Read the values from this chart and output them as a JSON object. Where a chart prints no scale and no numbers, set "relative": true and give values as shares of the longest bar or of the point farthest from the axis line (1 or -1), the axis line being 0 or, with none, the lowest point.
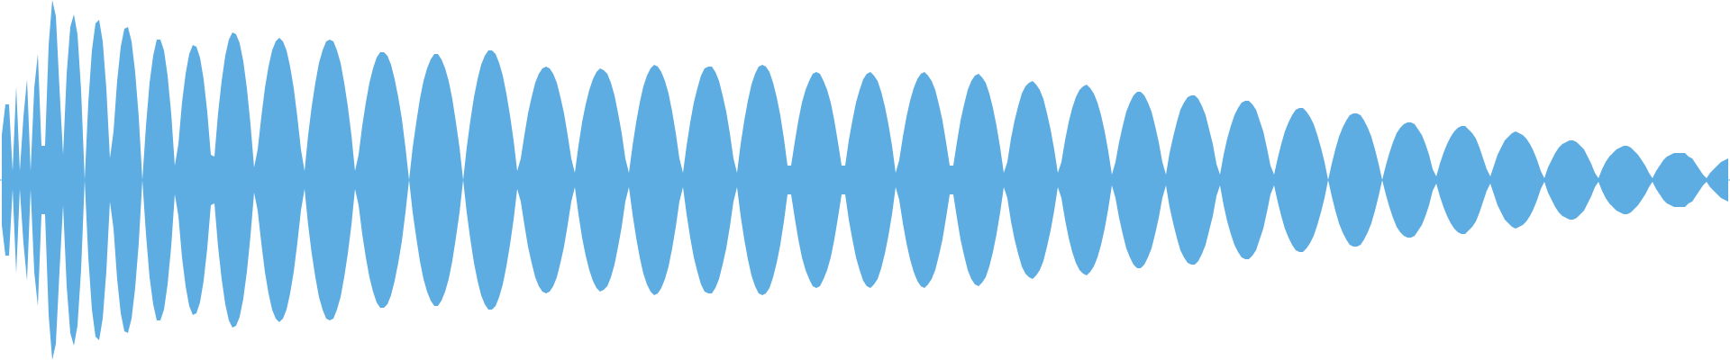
{
  "chart_data": {
    "type": "area",
    "relative": true,
    "ref_lines": [
      {
        "axis": "y",
        "value": 0,
        "color": "#5dade2"
      }
    ],
    "categories": [
      null,
      null,
      null,
      null,
      null,
      null,
      null,
      null,
      null,
      null,
      null,
      null,
      null,
      null,
      null,
      null,
      null,
      null,
      null,
      null,
      null,
      null,
      null,
      null,
      null,
      null,
      null,
      null,
      null,
      null,
      null,
      null,
      null,
      null,
      null,
      null,
      null,
      null,
      null,
      null,
      null,
      null,
      null,
      null,
      null,
      null,
      null,
      null,
      null,
      null,
      null,
      null,
      null,
      null,
      null,
      null,
      null,
      null,
      null,
      null,
      null,
      null,
      null,
      null,
      null,
      null,
      null,
      null,
      null,
      null,
      null,
      null,
      null,
      null,
      null,
      null,
      null,
      null,
      null,
      null,
      null,
      null,
      null,
      null,
      null,
      null,
      null,
      null,
      null,
      null,
      null,
      null,
      null,
      null,
      null,
      null,
      null,
      null,
      null,
      null,
      null,
      null,
      null,
      null,
      null,
      null,
      null,
      null,
      null,
      null,
      null,
      null,
      null,
      null,
      null,
      null,
      null,
      null,
      null,
      null,
      null,
      null,
      null,
      null,
      null,
      null,
      null,
      null,
      null,
      null,
      null,
      null,
      null,
      null,
      null,
      null,
      null,
      null,
      null,
      null,
      null,
      null,
      null,
      null,
      null,
      null,
      null,
      null,
      null,
      null,
      null,
      null,
      null,
      null,
      null,
      null,
      null,
      null,
      null,
      null,
      null,
      null,
      null,
      null,
      null,
      null,
      null,
      null,
      null,
      null,
      null,
      null,
      null,
      null,
      null,
      null,
      null,
      null,
      null,
      null,
      null,
      null,
      null,
      null,
      null,
      null,
      null,
      null,
      null,
      null,
      null,
      null,
      null,
      null,
      null,
      null,
      null,
      null,
      null,
      null,
      null,
      null,
      null,
      null,
      null,
      null,
      null,
      null,
      null,
      null,
      null,
      null,
      null,
      null,
      null,
      null,
      null,
      null,
      null,
      null,
      null,
      null,
      null,
      null,
      null,
      null,
      null,
      null,
      null,
      null,
      null,
      null,
      null,
      null,
      null,
      null,
      null,
      null,
      null,
      null,
      null,
      null,
      null,
      null,
      null,
      null,
      null,
      null,
      null,
      null,
      null,
      null,
      null,
      null,
      null,
      null,
      null,
      null,
      null,
      null,
      null,
      null,
      null,
      null,
      null,
      null,
      null,
      null,
      null,
      null,
      null,
      null,
      null,
      null,
      null,
      null,
      null,
      null,
      null,
      null,
      null,
      null,
      null,
      null,
      null,
      null,
      null,
      null,
      null,
      null,
      null,
      null,
      null,
      null,
      null,
      null,
      null,
      null,
      null,
      null,
      null,
      null,
      null,
      null,
      null,
      null,
      null,
      null,
      null,
      null,
      null,
      null,
      null,
      null,
      null,
      null,
      null,
      null,
      null,
      null,
      null,
      null,
      null,
      null,
      null,
      null,
      null,
      null,
      null,
      null,
      null,
      null,
      null,
      null,
      null,
      null,
      null,
      null,
      null,
      null,
      null,
      null,
      null,
      null,
      null,
      null,
      null,
      null,
      null,
      null,
      null,
      null,
      null,
      null,
      null,
      null,
      null,
      null,
      null,
      null,
      null,
      null,
      null,
      null,
      null,
      null,
      null,
      null,
      null,
      null,
      null,
      null,
      null,
      null,
      null,
      null,
      null,
      null,
      null,
      null,
      null,
      null,
      null,
      null,
      null,
      null,
      null,
      null,
      null,
      null,
      null,
      null,
      null,
      null,
      null,
      null,
      null,
      null,
      null,
      null,
      null,
      null,
      null,
      null,
      null,
      null,
      null,
      null,
      null,
      null,
      null,
      null,
      null,
      null,
      null,
      null,
      null,
      null,
      null,
      null,
      null,
      null,
      null,
      null,
      null,
      null,
      null,
      null,
      null,
      null,
      null,
      null,
      null,
      null,
      null,
      null,
      null,
      null,
      null,
      null,
      null,
      null,
      null,
      null,
      null,
      null,
      null,
      null,
      null,
      null,
      null,
      null,
      null,
      null,
      null,
      null,
      null,
      null,
      null,
      null,
      null,
      null,
      null,
      null,
      null,
      null,
      null,
      null,
      null,
      null,
      null,
      null,
      null,
      null,
      null,
      null,
      null,
      null,
      null,
      null
    ],
    "series": [
      {
        "color": "#5dade2",
        "values": [
          0.25,
          0.42,
          0.42,
          0.05,
          0.52,
          0.05,
          0.35,
          0.56,
          0.05,
          0.51,
          0.7,
          0.19,
          0.19,
          0.75,
          1,
          0.91,
          0.51,
          0.14,
          0.59,
          0.85,
          0.92,
          0.81,
          0.5,
          0,
          0.43,
          0.72,
          0.87,
          0.89,
          0.77,
          0.51,
          0.12,
          0.27,
          0.55,
          0.74,
          0.84,
          0.85,
          0.77,
          0.6,
          0.35,
          0,
          0.3,
          0.54,
          0.69,
          0.78,
          0.78,
          0.72,
          0.58,
          0.37,
          0.08,
          0.2,
          0.43,
          0.59,
          0.7,
          0.75,
          0.74,
          0.68,
          0.56,
          0.38,
          0.14,
          0.13,
          0.37,
          0.55,
          0.69,
          0.78,
          0.82,
          0.81,
          0.76,
          0.66,
          0.51,
          0.31,
          0.07,
          0.17,
          0.35,
          0.51,
          0.63,
          0.72,
          0.77,
          0.79,
          0.77,
          0.72,
          0.63,
          0.51,
          0.35,
          0.17,
          0.05,
          0.25,
          0.41,
          0.54,
          0.65,
          0.72,
          0.77,
          0.78,
          0.77,
          0.72,
          0.65,
          0.54,
          0.41,
          0.25,
          0.05,
          0.14,
          0.3,
          0.43,
          0.54,
          0.62,
          0.68,
          0.71,
          0.71,
          0.69,
          0.64,
          0.56,
          0.46,
          0.34,
          0.18,
          0,
          0.18,
          0.32,
          0.45,
          0.55,
          0.62,
          0.67,
          0.7,
          0.7,
          0.67,
          0.62,
          0.55,
          0.45,
          0.32,
          0.18,
          0,
          0.18,
          0.33,
          0.46,
          0.56,
          0.64,
          0.69,
          0.72,
          0.72,
          0.7,
          0.65,
          0.58,
          0.48,
          0.36,
          0.22,
          0.05,
          0.12,
          0.25,
          0.37,
          0.46,
          0.54,
          0.59,
          0.62,
          0.63,
          0.62,
          0.59,
          0.54,
          0.46,
          0.37,
          0.25,
          0.12,
          0.04,
          0.19,
          0.32,
          0.42,
          0.5,
          0.56,
          0.6,
          0.62,
          0.61,
          0.59,
          0.54,
          0.47,
          0.37,
          0.26,
          0.12,
          0.04,
          0.19,
          0.32,
          0.43,
          0.52,
          0.58,
          0.62,
          0.64,
          0.63,
          0.6,
          0.55,
          0.48,
          0.38,
          0.26,
          0.12,
          0.04,
          0.19,
          0.32,
          0.43,
          0.51,
          0.58,
          0.62,
          0.63,
          0.63,
          0.6,
          0.55,
          0.47,
          0.38,
          0.26,
          0.12,
          0.04,
          0.2,
          0.33,
          0.44,
          0.53,
          0.59,
          0.63,
          0.64,
          0.63,
          0.6,
          0.54,
          0.46,
          0.36,
          0.23,
          0.08,
          0.08,
          0.21,
          0.33,
          0.43,
          0.5,
          0.55,
          0.59,
          0.6,
          0.59,
          0.55,
          0.5,
          0.43,
          0.33,
          0.21,
          0.08,
          0.08,
          0.22,
          0.33,
          0.43,
          0.5,
          0.56,
          0.59,
          0.6,
          0.58,
          0.55,
          0.49,
          0.41,
          0.31,
          0.19,
          0.04,
          0.11,
          0.24,
          0.35,
          0.44,
          0.51,
          0.56,
          0.59,
          0.6,
          0.58,
          0.55,
          0.5,
          0.42,
          0.33,
          0.21,
          0.08,
          0.08,
          0.21,
          0.33,
          0.42,
          0.5,
          0.55,
          0.58,
          0.59,
          0.57,
          0.54,
          0.48,
          0.4,
          0.3,
          0.18,
          0.04,
          0.1,
          0.23,
          0.33,
          0.41,
          0.48,
          0.52,
          0.54,
          0.55,
          0.53,
          0.5,
          0.45,
          0.37,
          0.28,
          0.17,
          0.04,
          0.1,
          0.22,
          0.32,
          0.4,
          0.46,
          0.5,
          0.52,
          0.53,
          0.51,
          0.48,
          0.43,
          0.36,
          0.27,
          0.16,
          0.03,
          0.1,
          0.21,
          0.3,
          0.38,
          0.43,
          0.47,
          0.49,
          0.49,
          0.47,
          0.43,
          0.38,
          0.3,
          0.21,
          0.1,
          0.03,
          0.15,
          0.24,
          0.32,
          0.39,
          0.43,
          0.46,
          0.47,
          0.47,
          0.45,
          0.41,
          0.36,
          0.28,
          0.2,
          0.09,
          0.03,
          0.14,
          0.23,
          0.3,
          0.36,
          0.4,
          0.43,
          0.44,
          0.44,
          0.42,
          0.39,
          0.33,
          0.27,
          0.18,
          0.08,
          0.03,
          0.12,
          0.2,
          0.27,
          0.32,
          0.36,
          0.39,
          0.4,
          0.4,
          0.38,
          0.35,
          0.31,
          0.25,
          0.18,
          0.1,
          0,
          0.09,
          0.17,
          0.24,
          0.29,
          0.33,
          0.36,
          0.37,
          0.37,
          0.36,
          0.33,
          0.29,
          0.24,
          0.17,
          0.09,
          0,
          0.08,
          0.15,
          0.21,
          0.26,
          0.29,
          0.31,
          0.32,
          0.32,
          0.31,
          0.28,
          0.25,
          0.2,
          0.14,
          0.06,
          0.02,
          0.09,
          0.15,
          0.2,
          0.24,
          0.27,
          0.29,
          0.3,
          0.3,
          0.28,
          0.26,
          0.23,
          0.18,
          0.12,
          0.06,
          0.02,
          0.08,
          0.14,
          0.18,
          0.22,
          0.24,
          0.26,
          0.27,
          0.26,
          0.25,
          0.23,
          0.2,
          0.16,
          0.11,
          0.05,
          0.01,
          0.07,
          0.11,
          0.15,
          0.18,
          0.2,
          0.21,
          0.22,
          0.22,
          0.21,
          0.19,
          0.17,
          0.13,
          0.09,
          0.04,
          0.01,
          0.06,
          0.1,
          0.13,
          0.15,
          0.17,
          0.18,
          0.19,
          0.19,
          0.18,
          0.16,
          0.14,
          0.11,
          0.08,
          0.04,
          0.01,
          0.05,
          0.08,
          0.11,
          0.13,
          0.14,
          0.15,
          0.15,
          0.15,
          0.15,
          0.13,
          0.12,
          0.09,
          0.06,
          0.03,
          0.01,
          0.04,
          0.06,
          0.08,
          0.1,
          0.11,
          0.12
        ]
      },
      {
        "color": "#5dade2",
        "values": [
          -0.25,
          -0.42,
          -0.42,
          -0.05,
          -0.52,
          -0.05,
          -0.35,
          -0.56,
          -0.05,
          -0.51,
          -0.7,
          -0.19,
          -0.19,
          -0.75,
          -1,
          -0.91,
          -0.51,
          -0.14,
          -0.59,
          -0.85,
          -0.92,
          -0.81,
          -0.5,
          0,
          -0.43,
          -0.72,
          -0.87,
          -0.89,
          -0.77,
          -0.51,
          -0.12,
          -0.27,
          -0.55,
          -0.74,
          -0.84,
          -0.85,
          -0.77,
          -0.6,
          -0.35,
          0,
          -0.3,
          -0.54,
          -0.69,
          -0.78,
          -0.78,
          -0.72,
          -0.58,
          -0.37,
          -0.08,
          -0.2,
          -0.43,
          -0.59,
          -0.7,
          -0.75,
          -0.74,
          -0.68,
          -0.56,
          -0.38,
          -0.14,
          -0.13,
          -0.37,
          -0.55,
          -0.69,
          -0.78,
          -0.82,
          -0.81,
          -0.76,
          -0.66,
          -0.51,
          -0.31,
          -0.07,
          -0.17,
          -0.35,
          -0.51,
          -0.63,
          -0.72,
          -0.77,
          -0.79,
          -0.77,
          -0.72,
          -0.63,
          -0.51,
          -0.35,
          -0.17,
          -0.05,
          -0.25,
          -0.41,
          -0.54,
          -0.65,
          -0.72,
          -0.77,
          -0.78,
          -0.77,
          -0.72,
          -0.65,
          -0.54,
          -0.41,
          -0.25,
          -0.05,
          -0.14,
          -0.3,
          -0.43,
          -0.54,
          -0.62,
          -0.68,
          -0.71,
          -0.71,
          -0.69,
          -0.64,
          -0.56,
          -0.46,
          -0.34,
          -0.18,
          0,
          -0.18,
          -0.32,
          -0.45,
          -0.55,
          -0.62,
          -0.67,
          -0.7,
          -0.7,
          -0.67,
          -0.62,
          -0.55,
          -0.45,
          -0.32,
          -0.18,
          0,
          -0.18,
          -0.33,
          -0.46,
          -0.56,
          -0.64,
          -0.69,
          -0.72,
          -0.72,
          -0.7,
          -0.65,
          -0.58,
          -0.48,
          -0.36,
          -0.22,
          -0.05,
          -0.12,
          -0.25,
          -0.37,
          -0.46,
          -0.54,
          -0.59,
          -0.62,
          -0.63,
          -0.62,
          -0.59,
          -0.54,
          -0.46,
          -0.37,
          -0.25,
          -0.12,
          -0.04,
          -0.19,
          -0.32,
          -0.42,
          -0.5,
          -0.56,
          -0.6,
          -0.62,
          -0.61,
          -0.59,
          -0.54,
          -0.47,
          -0.37,
          -0.26,
          -0.12,
          -0.04,
          -0.19,
          -0.32,
          -0.43,
          -0.52,
          -0.58,
          -0.62,
          -0.64,
          -0.63,
          -0.6,
          -0.55,
          -0.48,
          -0.38,
          -0.26,
          -0.12,
          -0.04,
          -0.19,
          -0.32,
          -0.43,
          -0.51,
          -0.58,
          -0.62,
          -0.63,
          -0.63,
          -0.6,
          -0.55,
          -0.47,
          -0.38,
          -0.26,
          -0.12,
          -0.04,
          -0.2,
          -0.33,
          -0.44,
          -0.53,
          -0.59,
          -0.63,
          -0.64,
          -0.63,
          -0.6,
          -0.54,
          -0.46,
          -0.36,
          -0.23,
          -0.08,
          -0.08,
          -0.21,
          -0.33,
          -0.43,
          -0.5,
          -0.55,
          -0.59,
          -0.6,
          -0.59,
          -0.55,
          -0.5,
          -0.43,
          -0.33,
          -0.21,
          -0.08,
          -0.08,
          -0.22,
          -0.33,
          -0.43,
          -0.5,
          -0.56,
          -0.59,
          -0.6,
          -0.58,
          -0.55,
          -0.49,
          -0.41,
          -0.31,
          -0.19,
          -0.04,
          -0.11,
          -0.24,
          -0.35,
          -0.44,
          -0.51,
          -0.56,
          -0.59,
          -0.6,
          -0.58,
          -0.55,
          -0.5,
          -0.42,
          -0.33,
          -0.21,
          -0.08,
          -0.08,
          -0.21,
          -0.33,
          -0.42,
          -0.5,
          -0.55,
          -0.58,
          -0.59,
          -0.57,
          -0.54,
          -0.48,
          -0.4,
          -0.3,
          -0.18,
          -0.04,
          -0.1,
          -0.23,
          -0.33,
          -0.41,
          -0.48,
          -0.52,
          -0.54,
          -0.55,
          -0.53,
          -0.5,
          -0.45,
          -0.37,
          -0.28,
          -0.17,
          -0.04,
          -0.1,
          -0.22,
          -0.32,
          -0.4,
          -0.46,
          -0.5,
          -0.52,
          -0.53,
          -0.51,
          -0.48,
          -0.43,
          -0.36,
          -0.27,
          -0.16,
          -0.03,
          -0.1,
          -0.21,
          -0.3,
          -0.38,
          -0.43,
          -0.47,
          -0.49,
          -0.49,
          -0.47,
          -0.43,
          -0.38,
          -0.3,
          -0.21,
          -0.1,
          -0.03,
          -0.15,
          -0.24,
          -0.32,
          -0.39,
          -0.43,
          -0.46,
          -0.47,
          -0.47,
          -0.45,
          -0.41,
          -0.36,
          -0.28,
          -0.2,
          -0.09,
          -0.03,
          -0.14,
          -0.23,
          -0.3,
          -0.36,
          -0.4,
          -0.43,
          -0.44,
          -0.44,
          -0.42,
          -0.39,
          -0.33,
          -0.27,
          -0.18,
          -0.08,
          -0.03,
          -0.12,
          -0.2,
          -0.27,
          -0.32,
          -0.36,
          -0.39,
          -0.4,
          -0.4,
          -0.38,
          -0.35,
          -0.31,
          -0.25,
          -0.18,
          -0.1,
          0,
          -0.09,
          -0.17,
          -0.24,
          -0.29,
          -0.33,
          -0.36,
          -0.37,
          -0.37,
          -0.36,
          -0.33,
          -0.29,
          -0.24,
          -0.17,
          -0.09,
          0,
          -0.08,
          -0.15,
          -0.21,
          -0.26,
          -0.29,
          -0.31,
          -0.32,
          -0.32,
          -0.31,
          -0.28,
          -0.25,
          -0.2,
          -0.14,
          -0.06,
          -0.02,
          -0.09,
          -0.15,
          -0.2,
          -0.24,
          -0.27,
          -0.29,
          -0.3,
          -0.3,
          -0.28,
          -0.26,
          -0.23,
          -0.18,
          -0.12,
          -0.06,
          -0.02,
          -0.08,
          -0.14,
          -0.18,
          -0.22,
          -0.24,
          -0.26,
          -0.27,
          -0.26,
          -0.25,
          -0.23,
          -0.2,
          -0.16,
          -0.11,
          -0.05,
          -0.01,
          -0.07,
          -0.11,
          -0.15,
          -0.18,
          -0.2,
          -0.21,
          -0.22,
          -0.22,
          -0.21,
          -0.19,
          -0.17,
          -0.13,
          -0.09,
          -0.04,
          -0.01,
          -0.06,
          -0.1,
          -0.13,
          -0.15,
          -0.17,
          -0.18,
          -0.19,
          -0.19,
          -0.18,
          -0.16,
          -0.14,
          -0.11,
          -0.08,
          -0.04,
          -0.01,
          -0.05,
          -0.08,
          -0.11,
          -0.13,
          -0.14,
          -0.15,
          -0.15,
          -0.15,
          -0.15,
          -0.13,
          -0.12,
          -0.09,
          -0.06,
          -0.03,
          -0.01,
          -0.04,
          -0.06,
          -0.08,
          -0.1,
          -0.11,
          -0.12
        ]
      }
    ]
  }
}
